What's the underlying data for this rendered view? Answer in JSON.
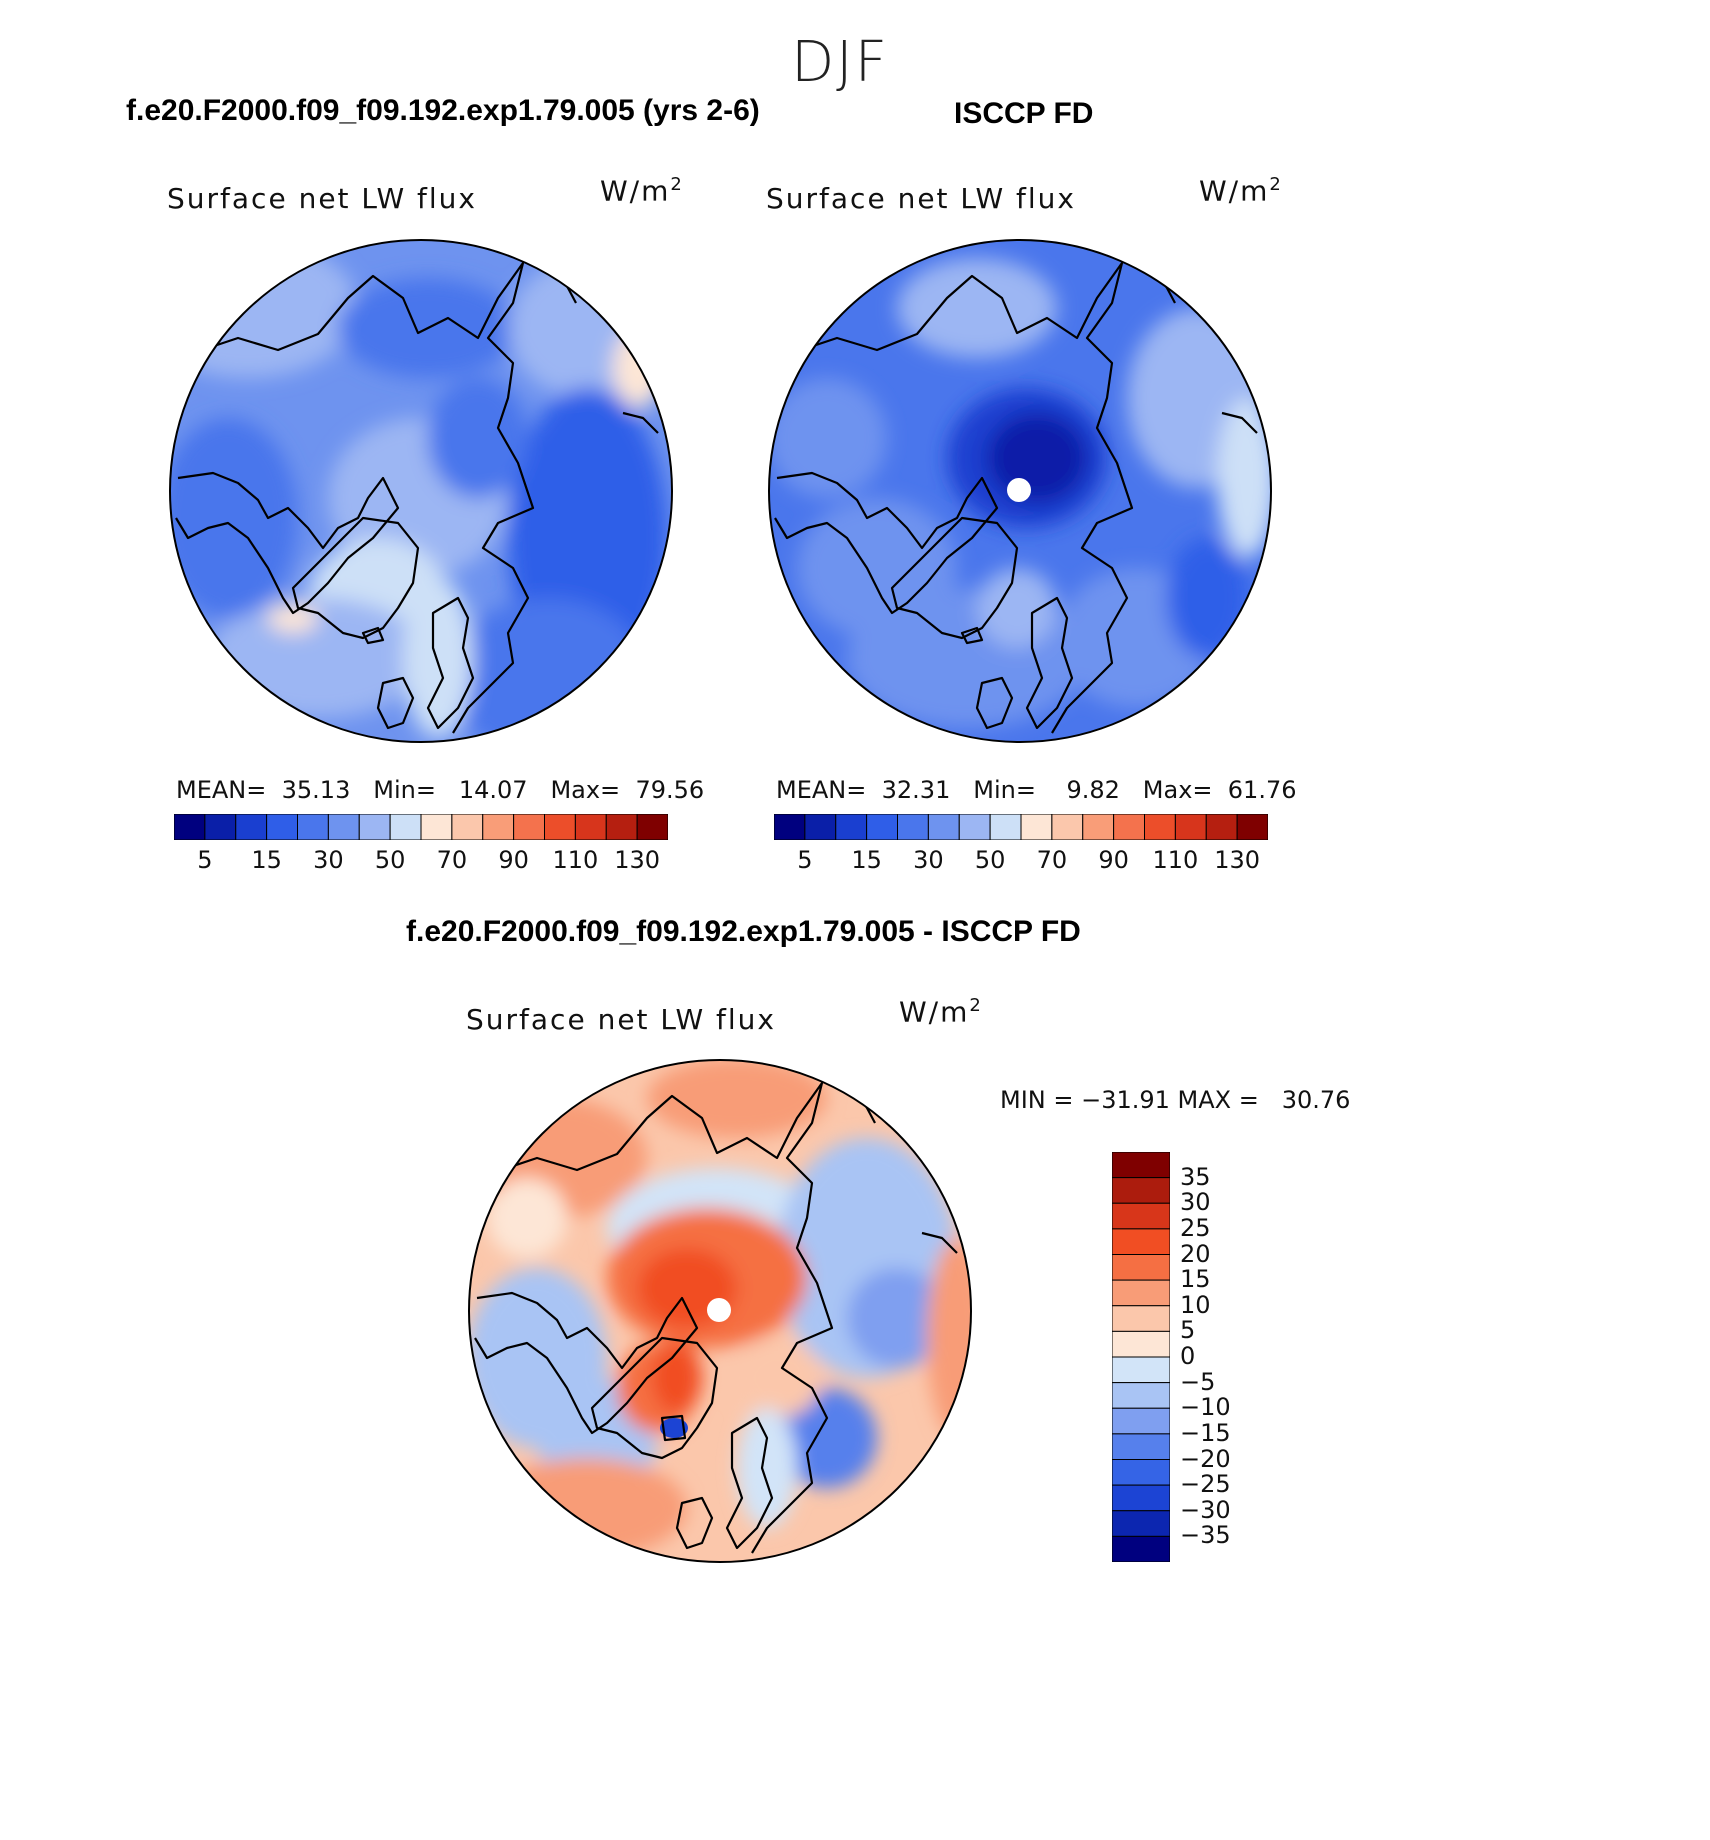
{
  "page": {
    "season": "DJF"
  },
  "panels": [
    {
      "id": "model",
      "case_title": "f.e20.F2000.f09_f09.192.exp1.79.005 (yrs 2-6)",
      "variable": "Surface net LW flux",
      "units": "W/m",
      "units_sup": "2",
      "stats": {
        "mean_label": "MEAN=",
        "mean": "35.13",
        "min_label": "Min=",
        "min": "14.07",
        "max_label": "Max=",
        "max": "79.56"
      }
    },
    {
      "id": "obs",
      "case_title": "ISCCP FD",
      "variable": "Surface net LW flux",
      "units": "W/m",
      "units_sup": "2",
      "stats": {
        "mean_label": "MEAN=",
        "mean": "32.31",
        "min_label": "Min=",
        "min": "9.82",
        "max_label": "Max=",
        "max": "61.76"
      }
    },
    {
      "id": "diff",
      "case_title": "f.e20.F2000.f09_f09.192.exp1.79.005 - ISCCP FD",
      "variable": "Surface net LW flux",
      "units": "W/m",
      "units_sup": "2",
      "stats_line": "MIN = −31.91 MAX =   30.76"
    }
  ],
  "colorbar_abs": {
    "colors": [
      "#00007f",
      "#0a1fa8",
      "#1a3fd0",
      "#2f5ee8",
      "#4a76ec",
      "#6e93ef",
      "#9cb6f3",
      "#cde0f7",
      "#fde6d6",
      "#fbc7ac",
      "#f99d78",
      "#f4724d",
      "#ec4e2a",
      "#d7351c",
      "#b51f10",
      "#7f0000"
    ],
    "tick_labels": [
      "5",
      "15",
      "30",
      "50",
      "70",
      "90",
      "110",
      "130"
    ]
  },
  "colorbar_diff": {
    "colors": [
      "#7f0000",
      "#ac1c0d",
      "#d8361a",
      "#f14e23",
      "#f56f43",
      "#f89c77",
      "#fbc7ab",
      "#fde6d6",
      "#d2e4f8",
      "#a9c4f4",
      "#7f9ff0",
      "#5680ec",
      "#3564e6",
      "#1c44d4",
      "#0c26b0",
      "#00007f"
    ],
    "tick_labels": [
      "35",
      "30",
      "25",
      "20",
      "15",
      "10",
      "5",
      "0",
      "−5",
      "−10",
      "−15",
      "−20",
      "−25",
      "−30",
      "−35"
    ]
  }
}
